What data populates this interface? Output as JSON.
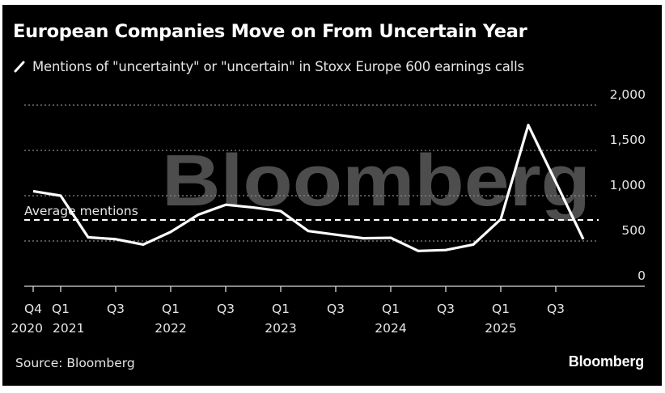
{
  "header": {
    "title": "European Companies Move on From Uncertain Year"
  },
  "footer": {
    "source": "Source: Bloomberg",
    "brand": "Bloomberg"
  },
  "watermark": "Bloomberg",
  "colors": {
    "background": "#000000",
    "line": "#ffffff",
    "grid": "#8a8a8a",
    "watermark": "#4d4d4d",
    "text": "#e6e6e6"
  },
  "chart_data": {
    "type": "line",
    "title": "European Companies Move on From Uncertain Year",
    "xlabel": "",
    "ylabel": "",
    "ylim": [
      0,
      2000
    ],
    "y_ticks": [
      {
        "value": 0,
        "label": "0"
      },
      {
        "value": 500,
        "label": "500"
      },
      {
        "value": 1000,
        "label": "1,000"
      },
      {
        "value": 1500,
        "label": "1,500"
      },
      {
        "value": 2000,
        "label": "2,000"
      }
    ],
    "y_axis_side": "right",
    "grid": true,
    "x": [
      "Q4 2020",
      "Q1 2021",
      "Q2 2021",
      "Q3 2021",
      "Q4 2021",
      "Q1 2022",
      "Q2 2022",
      "Q3 2022",
      "Q4 2022",
      "Q1 2023",
      "Q2 2023",
      "Q3 2023",
      "Q4 2023",
      "Q1 2024",
      "Q2 2024",
      "Q3 2024",
      "Q4 2024",
      "Q1 2025",
      "Q2 2025",
      "Q3 2025",
      "Q4 2025"
    ],
    "x_ticks": [
      {
        "index": 0,
        "line1": "Q4",
        "line2": "2020"
      },
      {
        "index": 1,
        "line1": "Q1",
        "line2": "2021"
      },
      {
        "index": 3,
        "line1": "Q3",
        "line2": ""
      },
      {
        "index": 5,
        "line1": "Q1",
        "line2": "2022"
      },
      {
        "index": 7,
        "line1": "Q3",
        "line2": ""
      },
      {
        "index": 9,
        "line1": "Q1",
        "line2": "2023"
      },
      {
        "index": 11,
        "line1": "Q3",
        "line2": ""
      },
      {
        "index": 13,
        "line1": "Q1",
        "line2": "2024"
      },
      {
        "index": 15,
        "line1": "Q3",
        "line2": ""
      },
      {
        "index": 17,
        "line1": "Q1",
        "line2": "2025"
      },
      {
        "index": 19,
        "line1": "Q3",
        "line2": ""
      }
    ],
    "series": [
      {
        "name": "Mentions of \"uncertainty\" or \"uncertain\" in Stoxx Europe 600 earnings calls",
        "values": [
          1050,
          1000,
          540,
          520,
          460,
          600,
          790,
          900,
          870,
          830,
          610,
          570,
          530,
          535,
          390,
          400,
          460,
          740,
          1780,
          1150,
          520
        ]
      }
    ],
    "annotations": [
      {
        "type": "hline",
        "value": 732,
        "label": "Average mentions",
        "style": "dashed"
      }
    ],
    "legend_placement": "top-left"
  }
}
